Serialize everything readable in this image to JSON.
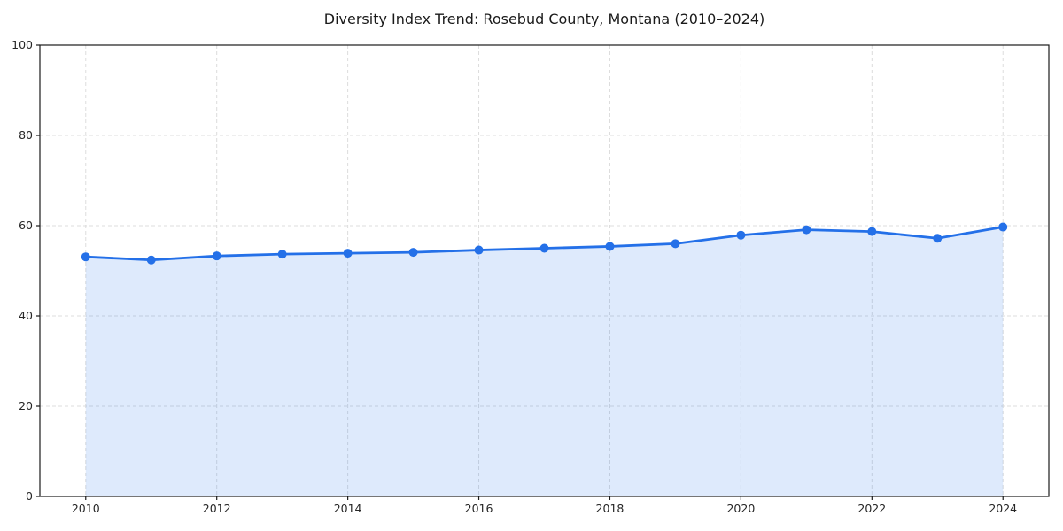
{
  "chart_data": {
    "type": "line",
    "fill": "area",
    "title": "Diversity Index Trend: Rosebud County, Montana (2010–2024)",
    "xlabel": "",
    "ylabel": "",
    "x": [
      2010,
      2011,
      2012,
      2013,
      2014,
      2015,
      2016,
      2017,
      2018,
      2019,
      2020,
      2021,
      2022,
      2023,
      2024
    ],
    "series": [
      {
        "name": "Diversity Index",
        "values": [
          53.1,
          52.4,
          53.3,
          53.7,
          53.9,
          54.1,
          54.6,
          55.0,
          55.4,
          56.0,
          57.9,
          59.1,
          58.7,
          57.2,
          59.7
        ]
      }
    ],
    "xlim": [
      2009.3,
      2024.7
    ],
    "ylim": [
      0,
      100
    ],
    "xticks": [
      2010,
      2012,
      2014,
      2016,
      2018,
      2020,
      2022,
      2024
    ],
    "yticks": [
      0,
      20,
      40,
      60,
      80,
      100
    ],
    "grid": "dashed, both axes, light gray",
    "legend": "none",
    "colors": {
      "line": "#2470e8",
      "marker": "#2470e8",
      "area_fill": "rgba(36,112,232,0.15)",
      "gridline": "#dcdcdc",
      "spine": "#1a1a1a",
      "background": "#ffffff"
    }
  }
}
